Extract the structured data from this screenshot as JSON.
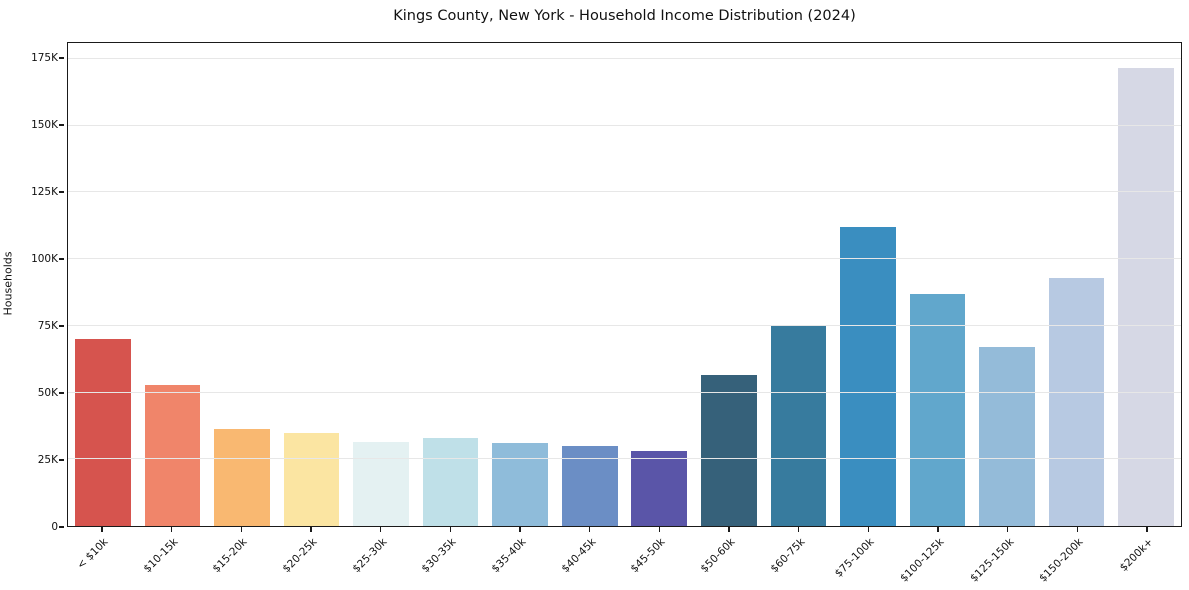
{
  "title": "Kings County, New York - Household Income Distribution (2024)",
  "chart_data": {
    "type": "bar",
    "title": "Kings County, New York - Household Income Distribution (2024)",
    "xlabel": "",
    "ylabel": "Households",
    "ylim": [
      0,
      181000
    ],
    "grid": "horizontal-light",
    "legend": "none",
    "x_tick_rotation_deg": 45,
    "categories": [
      "< $10k",
      "$10-15k",
      "$15-20k",
      "$20-25k",
      "$25-30k",
      "$30-35k",
      "$35-40k",
      "$40-45k",
      "$45-50k",
      "$50-60k",
      "$60-75k",
      "$75-100k",
      "$100-125k",
      "$125-150k",
      "$150-200k",
      "$200k+"
    ],
    "values": [
      70000,
      53000,
      36500,
      35000,
      31500,
      33000,
      31000,
      30000,
      28000,
      56500,
      75500,
      112000,
      87000,
      67000,
      93000,
      171500
    ],
    "bar_colors": [
      "#d6544e",
      "#f0856a",
      "#f9b871",
      "#fbe5a2",
      "#e4f1f2",
      "#bfe0e8",
      "#8fbcda",
      "#6b8ec5",
      "#5a55a8",
      "#36617a",
      "#377b9e",
      "#3a8ec0",
      "#61a7cc",
      "#94bbd9",
      "#b7c9e2",
      "#d6d8e5"
    ],
    "yticks": [
      {
        "v": 0,
        "label": "0"
      },
      {
        "v": 25000,
        "label": "25K"
      },
      {
        "v": 50000,
        "label": "50K"
      },
      {
        "v": 75000,
        "label": "75K"
      },
      {
        "v": 100000,
        "label": "100K"
      },
      {
        "v": 125000,
        "label": "125K"
      },
      {
        "v": 150000,
        "label": "150K"
      },
      {
        "v": 175000,
        "label": "175K"
      }
    ]
  }
}
